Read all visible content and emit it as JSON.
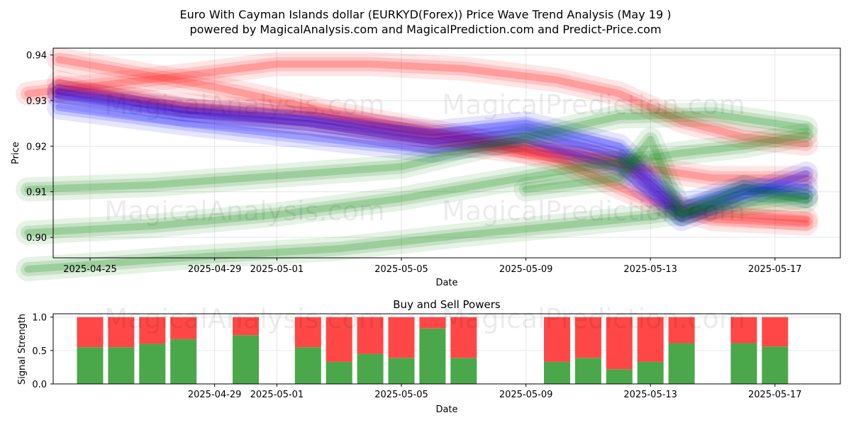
{
  "title_line1": "Euro With Cayman Islands dollar (EURKYD(Forex)) Price Wave Trend Analysis (May 19 )",
  "title_line2": "powered by MagicalAnalysis.com and MagicalPrediction.com and Predict-Price.com",
  "watermarks": [
    "MagicalAnalysis.com",
    "MagicalPrediction.com"
  ],
  "colors": {
    "red": "#ff0000",
    "blue": "#0000ff",
    "green": "#008000",
    "buy": "#4aa84a",
    "sell": "#ff4747"
  },
  "chart_data": [
    {
      "type": "line",
      "title": "",
      "xlabel": "Date",
      "ylabel": "Price",
      "ylim": [
        0.8955,
        0.9415
      ],
      "xlim": [
        "2025-04-23",
        "2025-05-19"
      ],
      "yticks": [
        "0.90",
        "0.91",
        "0.92",
        "0.93",
        "0.94"
      ],
      "xticks": [
        "2025-04-25",
        "2025-04-29",
        "2025-05-01",
        "2025-05-05",
        "2025-05-09",
        "2025-05-13",
        "2025-05-17"
      ],
      "grid": true,
      "series": [
        {
          "color": "red",
          "x": [
            "2025-04-23",
            "2025-04-28",
            "2025-05-01",
            "2025-05-04",
            "2025-05-07",
            "2025-05-10",
            "2025-05-12",
            "2025-05-14",
            "2025-05-16",
            "2025-05-18"
          ],
          "y": [
            0.9315,
            0.9355,
            0.938,
            0.938,
            0.937,
            0.9345,
            0.9315,
            0.9255,
            0.922,
            0.9205
          ]
        },
        {
          "color": "red",
          "x": [
            "2025-04-24",
            "2025-04-28",
            "2025-05-02",
            "2025-05-06",
            "2025-05-09",
            "2025-05-12",
            "2025-05-14",
            "2025-05-16",
            "2025-05-18"
          ],
          "y": [
            0.932,
            0.929,
            0.927,
            0.9225,
            0.92,
            0.917,
            0.906,
            0.905,
            0.904
          ]
        },
        {
          "color": "red",
          "x": [
            "2025-04-24",
            "2025-04-29",
            "2025-05-03",
            "2025-05-07",
            "2025-05-10",
            "2025-05-13",
            "2025-05-15",
            "2025-05-18"
          ],
          "y": [
            0.939,
            0.933,
            0.927,
            0.922,
            0.917,
            0.908,
            0.904,
            0.903
          ]
        },
        {
          "color": "red",
          "x": [
            "2025-04-24",
            "2025-04-28",
            "2025-05-02",
            "2025-05-06",
            "2025-05-10",
            "2025-05-13",
            "2025-05-15",
            "2025-05-18"
          ],
          "y": [
            0.934,
            0.928,
            0.925,
            0.921,
            0.918,
            0.915,
            0.913,
            0.913
          ]
        },
        {
          "color": "blue",
          "x": [
            "2025-04-24",
            "2025-04-28",
            "2025-05-02",
            "2025-05-06",
            "2025-05-09",
            "2025-05-12",
            "2025-05-14",
            "2025-05-16",
            "2025-05-18"
          ],
          "y": [
            0.931,
            0.927,
            0.925,
            0.921,
            0.9235,
            0.918,
            0.905,
            0.91,
            0.911
          ]
        },
        {
          "color": "blue",
          "x": [
            "2025-04-24",
            "2025-04-28",
            "2025-05-02",
            "2025-05-06",
            "2025-05-09",
            "2025-05-12",
            "2025-05-14",
            "2025-05-16",
            "2025-05-18"
          ],
          "y": [
            0.9285,
            0.925,
            0.922,
            0.919,
            0.9215,
            0.915,
            0.904,
            0.909,
            0.914
          ]
        },
        {
          "color": "blue",
          "x": [
            "2025-04-24",
            "2025-04-28",
            "2025-05-02",
            "2025-05-06",
            "2025-05-09",
            "2025-05-12",
            "2025-05-14",
            "2025-05-16",
            "2025-05-18"
          ],
          "y": [
            0.932,
            0.928,
            0.926,
            0.923,
            0.925,
            0.92,
            0.907,
            0.911,
            0.909
          ]
        },
        {
          "color": "green",
          "x": [
            "2025-04-23",
            "2025-04-27",
            "2025-05-01",
            "2025-05-05",
            "2025-05-08",
            "2025-05-11",
            "2025-05-14",
            "2025-05-16",
            "2025-05-18"
          ],
          "y": [
            0.901,
            0.9025,
            0.905,
            0.9085,
            0.912,
            0.9155,
            0.9185,
            0.92,
            0.9225
          ]
        },
        {
          "color": "green",
          "x": [
            "2025-04-23",
            "2025-04-27",
            "2025-05-01",
            "2025-05-05",
            "2025-05-09",
            "2025-05-12",
            "2025-05-15",
            "2025-05-18"
          ],
          "y": [
            0.9105,
            0.9115,
            0.9135,
            0.9155,
            0.922,
            0.9265,
            0.927,
            0.924
          ]
        },
        {
          "color": "green",
          "x": [
            "2025-04-23",
            "2025-04-28",
            "2025-05-03",
            "2025-05-07",
            "2025-05-10",
            "2025-05-13",
            "2025-05-15",
            "2025-05-18"
          ],
          "y": [
            0.893,
            0.8955,
            0.8975,
            0.9005,
            0.9025,
            0.9045,
            0.9065,
            0.909
          ]
        },
        {
          "color": "green",
          "x": [
            "2025-05-09",
            "2025-05-12",
            "2025-05-13",
            "2025-05-14",
            "2025-05-16",
            "2025-05-18"
          ],
          "y": [
            0.9105,
            0.913,
            0.9215,
            0.905,
            0.911,
            0.908
          ]
        }
      ]
    },
    {
      "type": "bar",
      "title": "Buy and Sell Powers",
      "xlabel": "Date",
      "ylabel": "Signal Strength",
      "ylim": [
        0,
        1.05
      ],
      "yticks": [
        "0.0",
        "0.5",
        "1.0"
      ],
      "xticks": [
        "2025-04-29",
        "2025-05-01",
        "2025-05-05",
        "2025-05-09",
        "2025-05-13",
        "2025-05-17"
      ],
      "dates": [
        "2025-04-25",
        "2025-04-26",
        "2025-04-27",
        "2025-04-28",
        "2025-04-30",
        "2025-05-02",
        "2025-05-03",
        "2025-05-04",
        "2025-05-05",
        "2025-05-06",
        "2025-05-07",
        "2025-05-10",
        "2025-05-11",
        "2025-05-12",
        "2025-05-13",
        "2025-05-14",
        "2025-05-16",
        "2025-05-17"
      ],
      "series": [
        {
          "name": "buy",
          "values": [
            0.55,
            0.55,
            0.6,
            0.67,
            0.73,
            0.55,
            0.33,
            0.45,
            0.39,
            0.83,
            0.39,
            0.33,
            0.39,
            0.22,
            0.33,
            0.61,
            0.61,
            0.56
          ]
        },
        {
          "name": "sell",
          "values": [
            0.45,
            0.45,
            0.4,
            0.33,
            0.27,
            0.45,
            0.67,
            0.55,
            0.61,
            0.17,
            0.61,
            0.67,
            0.61,
            0.78,
            0.67,
            0.39,
            0.39,
            0.44
          ]
        }
      ]
    }
  ]
}
